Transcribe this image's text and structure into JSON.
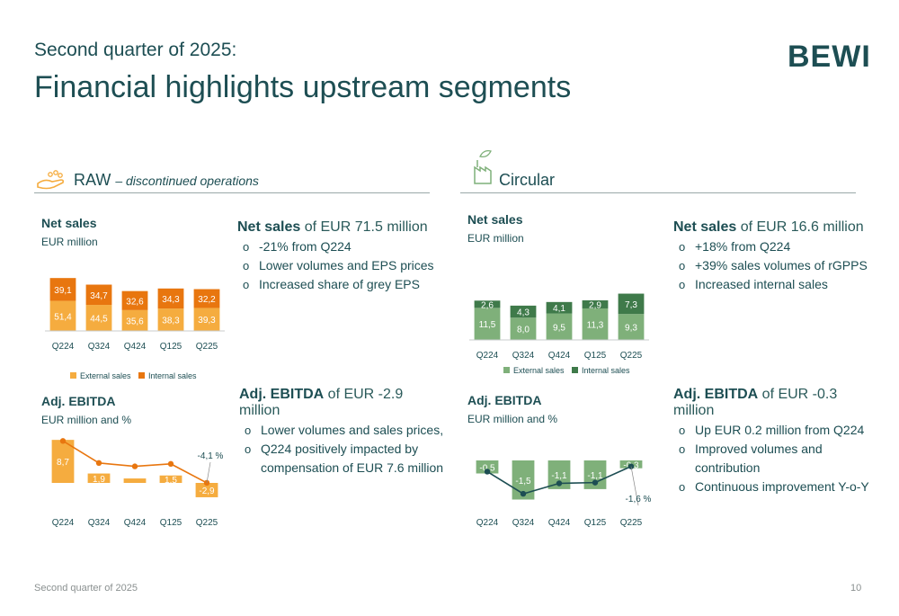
{
  "header": {
    "subtitle": "Second quarter of 2025:",
    "title": "Financial highlights upstream segments",
    "logo": "BEWI"
  },
  "raw": {
    "title": "RAW",
    "title_suffix": "– discontinued operations",
    "icon": "hand-with-beads-icon",
    "net_sales": {
      "heading": "Net sales",
      "unit": "EUR million",
      "bullet_head": "Net sales",
      "bullet_value": " of EUR 71.5 million",
      "bullets": [
        "-21% from Q224",
        "Lower volumes and EPS prices",
        "Increased share of grey EPS"
      ]
    },
    "ebitda": {
      "heading": "Adj. EBITDA",
      "unit": "EUR million and %",
      "bullet_head": "Adj. EBITDA",
      "bullet_value": " of EUR -2.9 million",
      "bullets": [
        "Lower volumes and sales prices,",
        "Q224 positively impacted by compensation of EUR 7.6 million"
      ]
    }
  },
  "circular": {
    "title": "Circular",
    "icon": "recycling-factory-icon",
    "net_sales": {
      "heading": "Net sales",
      "unit": "EUR million",
      "bullet_head": "Net sales",
      "bullet_value": " of EUR 16.6 million",
      "bullets": [
        "+18% from Q224",
        "+39% sales volumes of rGPPS",
        "Increased internal sales"
      ]
    },
    "ebitda": {
      "heading": "Adj. EBITDA",
      "unit": "EUR million and %",
      "bullet_head": "Adj. EBITDA",
      "bullet_value": " of EUR -0.3 million",
      "bullets": [
        "Up EUR 0.2 million from Q224",
        "Improved volumes and contribution",
        "Continuous improvement Y-o-Y"
      ]
    }
  },
  "colors": {
    "raw_external": "#f5ac3f",
    "raw_internal": "#e8760f",
    "circ_external": "#7fb07a",
    "circ_internal": "#3f7a4a",
    "circ_line": "#1d4e53",
    "raw_line": "#e8760f"
  },
  "footer": {
    "left": "Second quarter of 2025",
    "page": "10"
  },
  "chart_data": [
    {
      "id": "raw-net-sales",
      "type": "bar",
      "stacked": true,
      "categories": [
        "Q224",
        "Q324",
        "Q424",
        "Q125",
        "Q225"
      ],
      "series": [
        {
          "name": "External sales",
          "values": [
            51.4,
            44.5,
            35.6,
            38.3,
            39.3
          ],
          "labels": [
            "51,4",
            "44,5",
            "35,6",
            "38,3",
            "39,3"
          ]
        },
        {
          "name": "Internal sales",
          "values": [
            39.1,
            34.7,
            32.6,
            34.3,
            32.2
          ],
          "labels": [
            "39,1",
            "34,7",
            "32,6",
            "34,3",
            "32,2"
          ]
        }
      ],
      "legend": "bottom"
    },
    {
      "id": "raw-ebitda",
      "type": "bar",
      "categories": [
        "Q224",
        "Q324",
        "Q424",
        "Q125",
        "Q225"
      ],
      "values": [
        8.7,
        1.9,
        0.9,
        1.5,
        -2.9
      ],
      "labels": [
        "8,7",
        "1,9",
        "",
        "1,5",
        "-2,9"
      ],
      "margin_pct": [
        9.6,
        2.4,
        1.3,
        2.1,
        -4.1
      ],
      "annotation": "-4,1 %"
    },
    {
      "id": "circ-net-sales",
      "type": "bar",
      "stacked": true,
      "categories": [
        "Q224",
        "Q324",
        "Q424",
        "Q125",
        "Q225"
      ],
      "series": [
        {
          "name": "External sales",
          "values": [
            11.5,
            8.0,
            9.5,
            11.3,
            9.3
          ],
          "labels": [
            "11,5",
            "8,0",
            "9,5",
            "11,3",
            "9,3"
          ]
        },
        {
          "name": "Internal sales",
          "values": [
            2.6,
            4.3,
            4.1,
            2.9,
            7.3
          ],
          "labels": [
            "2,6",
            "4,3",
            "4,1",
            "2,9",
            "7,3"
          ]
        }
      ],
      "legend": "bottom"
    },
    {
      "id": "circ-ebitda",
      "type": "bar",
      "categories": [
        "Q224",
        "Q324",
        "Q424",
        "Q125",
        "Q225"
      ],
      "values": [
        -0.5,
        -1.5,
        -1.1,
        -1.1,
        -0.3
      ],
      "labels": [
        "-0,5",
        "-1,5",
        "-1,1",
        "-1,1",
        "-0,3"
      ],
      "margin_pct": [
        -3.6,
        -12.1,
        -8.1,
        -7.8,
        -1.6
      ],
      "annotation": "-1,6 %"
    }
  ]
}
